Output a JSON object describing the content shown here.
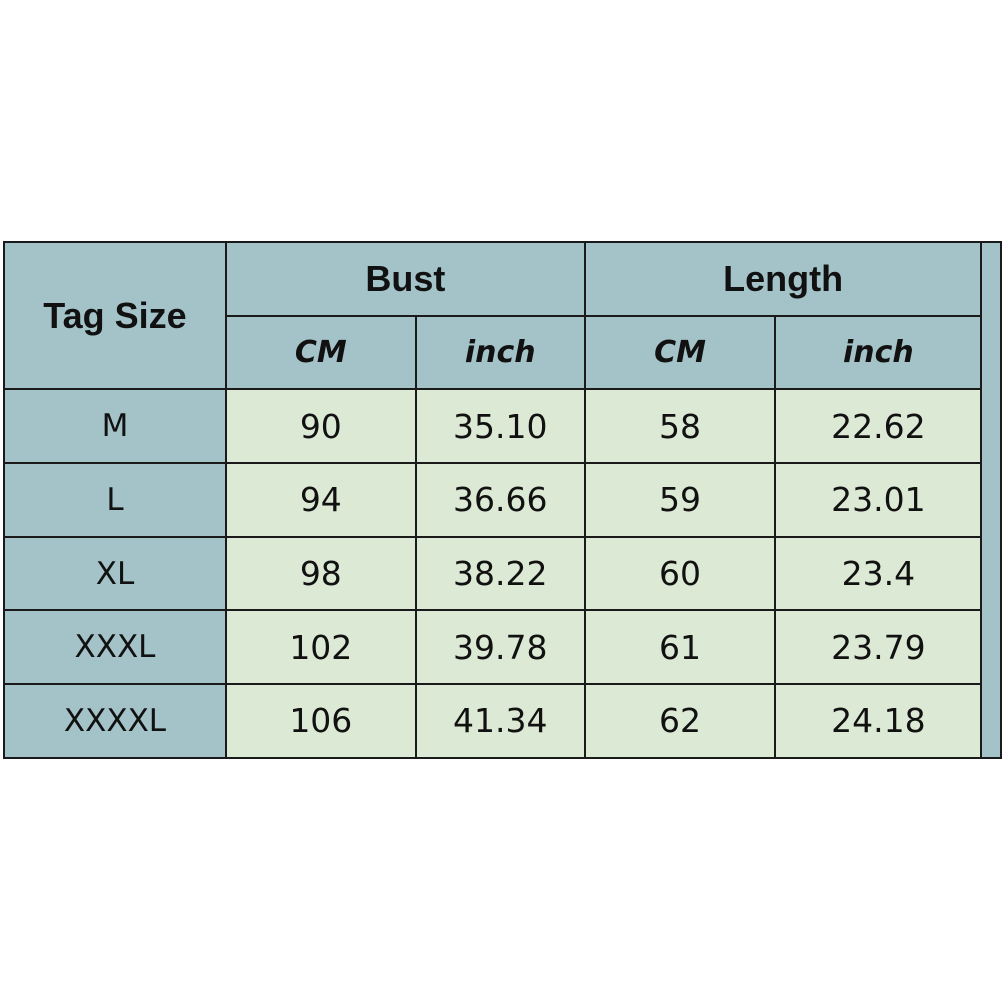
{
  "table": {
    "header": {
      "tag_size": "Tag Size",
      "groups": [
        "Bust",
        "Length"
      ],
      "units": [
        "CM",
        "inch",
        "CM",
        "inch"
      ]
    },
    "rows": [
      [
        "M",
        "90",
        "35.10",
        "58",
        "22.62"
      ],
      [
        "L",
        "94",
        "36.66",
        "59",
        "23.01"
      ],
      [
        "XL",
        "98",
        "38.22",
        "60",
        "23.4"
      ],
      [
        "XXXL",
        "102",
        "39.78",
        "61",
        "23.79"
      ],
      [
        "XXXXL",
        "106",
        "41.34",
        "62",
        "24.18"
      ]
    ]
  },
  "colors": {
    "header": "#a3c3c9",
    "body": "#dce9d4",
    "border": "#1a1a1a"
  }
}
